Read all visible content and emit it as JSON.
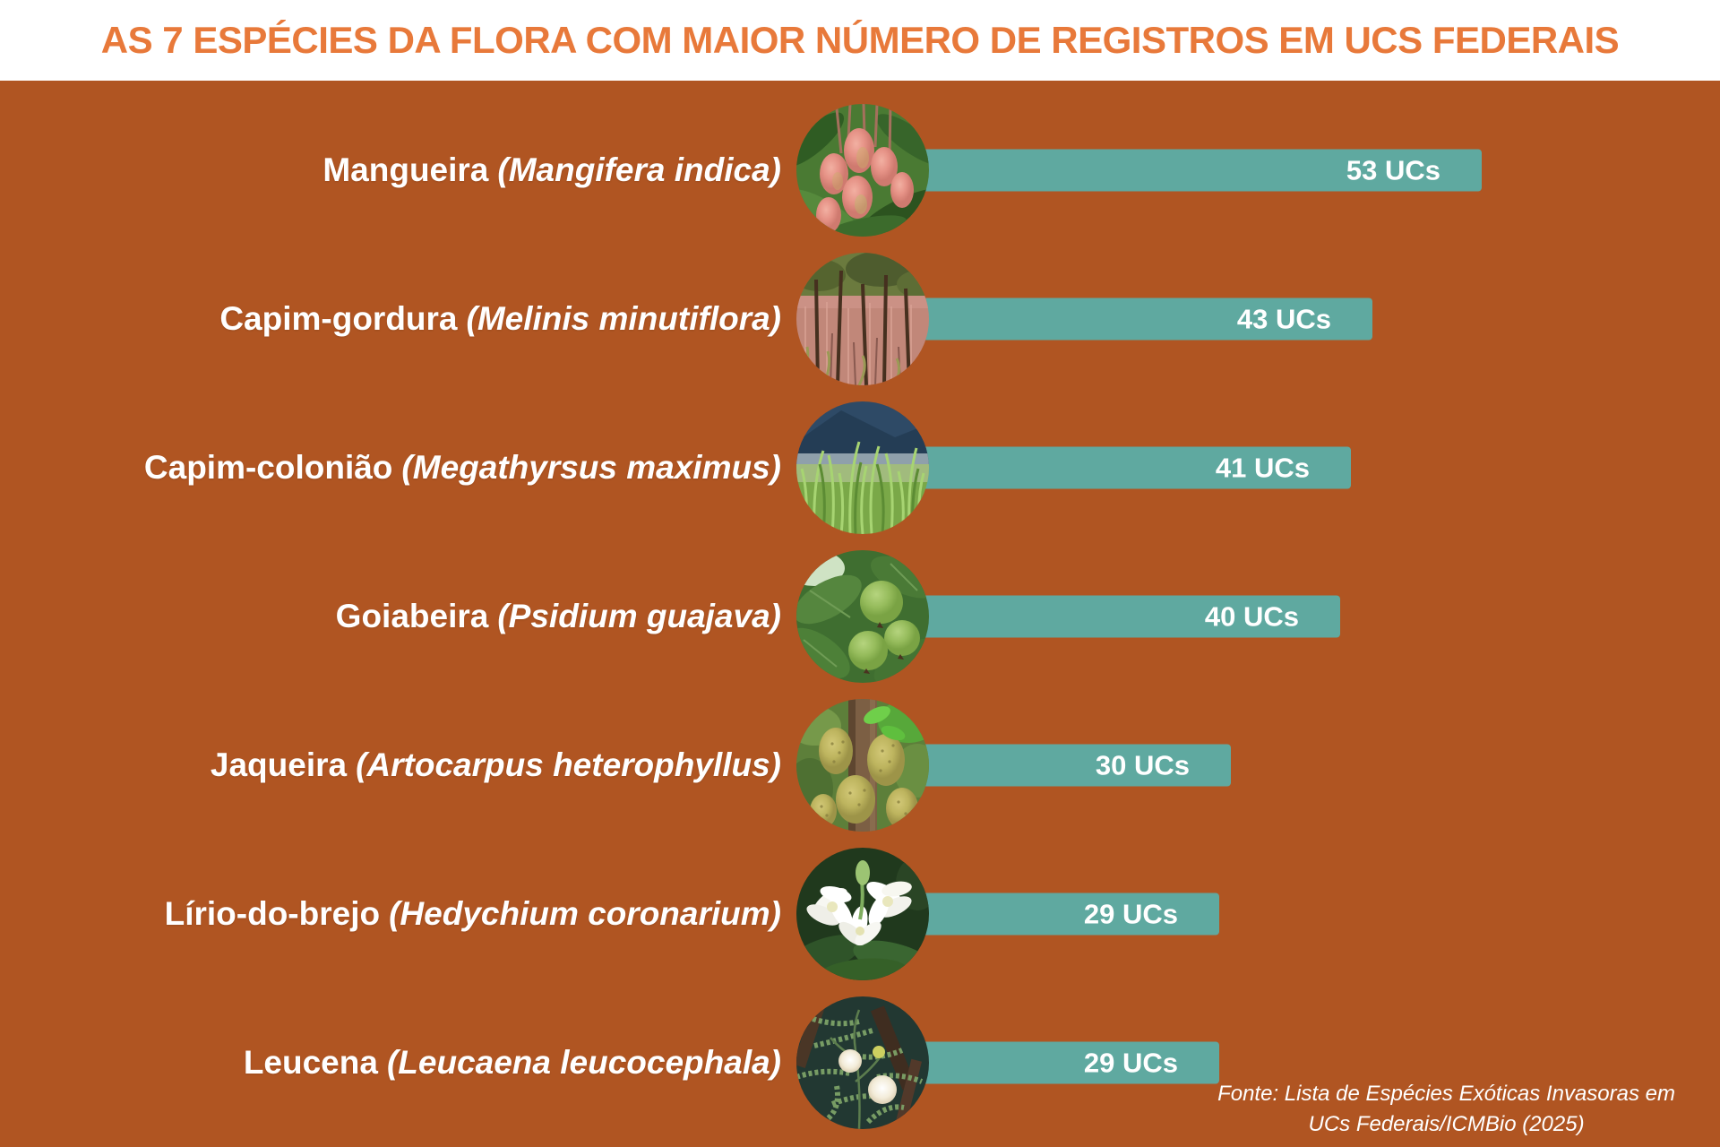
{
  "title": "AS 7 ESPÉCIES DA FLORA COM MAIOR NÚMERO DE REGISTROS EM UCS FEDERAIS",
  "colors": {
    "background": "#B05522",
    "header_background": "#FFFFFF",
    "title_text": "#E8793A",
    "bar": "#5FA9A0",
    "label_text": "#FFFFFF"
  },
  "chart_data": {
    "type": "bar",
    "orientation": "horizontal",
    "title": "AS 7 ESPÉCIES DA FLORA COM MAIOR NÚMERO DE REGISTROS EM UCS FEDERAIS",
    "unit": "UCs",
    "max_value": 53,
    "categories": [
      "Mangueira (Mangifera indica)",
      "Capim-gordura (Melinis minutiflora)",
      "Capim-colonião (Megathyrsus maximus)",
      "Goiabeira (Psidium guajava)",
      "Jaqueira (Artocarpus heterophyllus)",
      "Lírio-do-brejo (Hedychium coronarium)",
      "Leucena (Leucaena leucocephala)"
    ],
    "values": [
      53,
      43,
      41,
      40,
      30,
      29,
      29
    ],
    "data_labels": [
      "53 UCs",
      "43 UCs",
      "41 UCs",
      "40 UCs",
      "30 UCs",
      "29 UCs",
      "29 UCs"
    ],
    "source": "Fonte: Lista de Espécies Exóticas Invasoras em UCs Federais/ICMBio (2025)"
  },
  "rows": [
    {
      "common": "Mangueira",
      "scientific": "(Mangifera indica)",
      "value": 53,
      "value_label": "53 UCs",
      "photo": "mango-fruits-photo"
    },
    {
      "common": "Capim-gordura",
      "scientific": "(Melinis minutiflora)",
      "value": 43,
      "value_label": "43 UCs",
      "photo": "molasses-grass-photo"
    },
    {
      "common": "Capim-colonião",
      "scientific": "(Megathyrsus maximus)",
      "value": 41,
      "value_label": "41 UCs",
      "photo": "guinea-grass-photo"
    },
    {
      "common": "Goiabeira",
      "scientific": "(Psidium guajava)",
      "value": 40,
      "value_label": "40 UCs",
      "photo": "guava-fruits-photo"
    },
    {
      "common": "Jaqueira",
      "scientific": "(Artocarpus heterophyllus)",
      "value": 30,
      "value_label": "30 UCs",
      "photo": "jackfruit-photo"
    },
    {
      "common": "Lírio-do-brejo",
      "scientific": "(Hedychium coronarium)",
      "value": 29,
      "value_label": "29 UCs",
      "photo": "white-ginger-lily-photo"
    },
    {
      "common": "Leucena",
      "scientific": "(Leucaena leucocephala)",
      "value": 29,
      "value_label": "29 UCs",
      "photo": "leucaena-photo"
    }
  ],
  "source": {
    "line1": "Fonte: Lista de Espécies Exóticas Invasoras em",
    "line2": "UCs Federais/ICMBio (2025)"
  }
}
